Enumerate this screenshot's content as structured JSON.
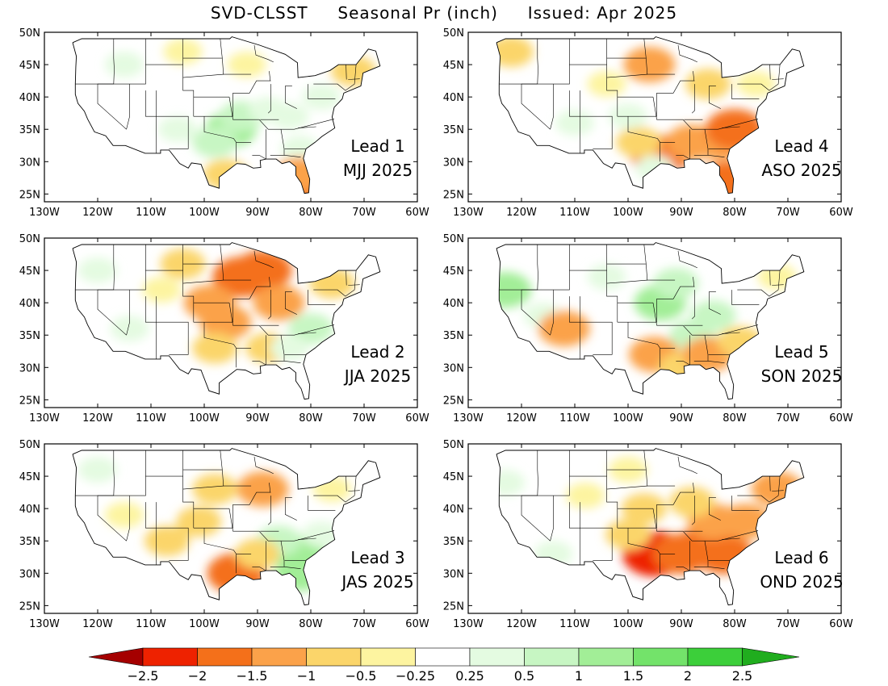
{
  "title": "SVD-CLSST     Seasonal Pr (inch)     Issued: Apr 2025",
  "lon_ticks": [
    "130W",
    "120W",
    "110W",
    "100W",
    "90W",
    "80W",
    "70W",
    "60W"
  ],
  "lat_ticks": [
    "50N",
    "45N",
    "40N",
    "35N",
    "30N",
    "25N"
  ],
  "panels": [
    {
      "lead": "Lead 1",
      "season": "MJJ 2025",
      "anomalies": [
        {
          "lon": -95,
          "lat": 35,
          "level": 3
        },
        {
          "lon": -93,
          "lat": 37,
          "level": 2
        },
        {
          "lon": -98,
          "lat": 33,
          "level": 2
        },
        {
          "lon": -88,
          "lat": 38,
          "level": 1
        },
        {
          "lon": -84,
          "lat": 37,
          "level": 1
        },
        {
          "lon": -78,
          "lat": 40,
          "level": 1
        },
        {
          "lon": -115,
          "lat": 45,
          "level": 1
        },
        {
          "lon": -105,
          "lat": 35,
          "level": 1
        },
        {
          "lon": -82,
          "lat": 32,
          "level": 1
        },
        {
          "lon": -81,
          "lat": 26,
          "level": -4
        },
        {
          "lon": -82,
          "lat": 28,
          "level": -3
        },
        {
          "lon": -96,
          "lat": 28,
          "level": -2
        },
        {
          "lon": -72,
          "lat": 44,
          "level": -2
        },
        {
          "lon": -92,
          "lat": 45,
          "level": -1
        },
        {
          "lon": -104,
          "lat": 47,
          "level": -1
        }
      ]
    },
    {
      "lead": "Lead 4",
      "season": "ASO 2025",
      "anomalies": [
        {
          "lon": -96,
          "lat": 45,
          "level": -3
        },
        {
          "lon": -94,
          "lat": 31,
          "level": -4
        },
        {
          "lon": -88,
          "lat": 33,
          "level": -3
        },
        {
          "lon": -83,
          "lat": 33,
          "level": -3
        },
        {
          "lon": -80,
          "lat": 35,
          "level": -4
        },
        {
          "lon": -81,
          "lat": 27,
          "level": -4
        },
        {
          "lon": -98,
          "lat": 33,
          "level": -2
        },
        {
          "lon": -85,
          "lat": 42,
          "level": -2
        },
        {
          "lon": -104,
          "lat": 42,
          "level": -1
        },
        {
          "lon": -122,
          "lat": 47,
          "level": -2
        },
        {
          "lon": -76,
          "lat": 42,
          "level": -1
        },
        {
          "lon": -110,
          "lat": 36,
          "level": 1
        },
        {
          "lon": -100,
          "lat": 37,
          "level": 1
        },
        {
          "lon": -95,
          "lat": 29,
          "level": 1
        }
      ]
    },
    {
      "lead": "Lead 2",
      "season": "JJA 2025",
      "anomalies": [
        {
          "lon": -93,
          "lat": 44,
          "level": -4
        },
        {
          "lon": -89,
          "lat": 45,
          "level": -4
        },
        {
          "lon": -86,
          "lat": 40,
          "level": -3
        },
        {
          "lon": -99,
          "lat": 40,
          "level": -3
        },
        {
          "lon": -96,
          "lat": 37,
          "level": -3
        },
        {
          "lon": -98,
          "lat": 33,
          "level": -2
        },
        {
          "lon": -76,
          "lat": 43,
          "level": -2
        },
        {
          "lon": -104,
          "lat": 46,
          "level": -2
        },
        {
          "lon": -108,
          "lat": 42,
          "level": -1
        },
        {
          "lon": -88,
          "lat": 33,
          "level": -2
        },
        {
          "lon": -80,
          "lat": 36,
          "level": 2
        },
        {
          "lon": -84,
          "lat": 33,
          "level": 1
        },
        {
          "lon": -120,
          "lat": 45,
          "level": 1
        },
        {
          "lon": -114,
          "lat": 36,
          "level": 1
        }
      ]
    },
    {
      "lead": "Lead 5",
      "season": "SON 2025",
      "anomalies": [
        {
          "lon": -123,
          "lat": 42,
          "level": 3
        },
        {
          "lon": -94,
          "lat": 40,
          "level": 3
        },
        {
          "lon": -91,
          "lat": 43,
          "level": 2
        },
        {
          "lon": -88,
          "lat": 35,
          "level": 2
        },
        {
          "lon": -84,
          "lat": 38,
          "level": 2
        },
        {
          "lon": -80,
          "lat": 34,
          "level": 1
        },
        {
          "lon": -104,
          "lat": 44,
          "level": 1
        },
        {
          "lon": -116,
          "lat": 38,
          "level": 1
        },
        {
          "lon": -112,
          "lat": 36,
          "level": -3
        },
        {
          "lon": -95,
          "lat": 32,
          "level": -3
        },
        {
          "lon": -90,
          "lat": 30,
          "level": -2
        },
        {
          "lon": -85,
          "lat": 32,
          "level": -3
        },
        {
          "lon": -79,
          "lat": 34,
          "level": -2
        },
        {
          "lon": -72,
          "lat": 44,
          "level": -1
        }
      ]
    },
    {
      "lead": "Lead 3",
      "season": "JAS 2025",
      "anomalies": [
        {
          "lon": -82,
          "lat": 30,
          "level": 3
        },
        {
          "lon": -82,
          "lat": 33,
          "level": 3
        },
        {
          "lon": -86,
          "lat": 35,
          "level": 2
        },
        {
          "lon": -78,
          "lat": 36,
          "level": 1
        },
        {
          "lon": -94,
          "lat": 30,
          "level": -4
        },
        {
          "lon": -89,
          "lat": 43,
          "level": -3
        },
        {
          "lon": -98,
          "lat": 43,
          "level": -2
        },
        {
          "lon": -101,
          "lat": 38,
          "level": -2
        },
        {
          "lon": -107,
          "lat": 35,
          "level": -2
        },
        {
          "lon": -90,
          "lat": 33,
          "level": -2
        },
        {
          "lon": -76,
          "lat": 43,
          "level": -1
        },
        {
          "lon": -115,
          "lat": 39,
          "level": -1
        },
        {
          "lon": -120,
          "lat": 46,
          "level": 1
        }
      ]
    },
    {
      "lead": "Lead 6",
      "season": "OND 2025",
      "anomalies": [
        {
          "lon": -95,
          "lat": 33,
          "level": -5
        },
        {
          "lon": -90,
          "lat": 33,
          "level": -4
        },
        {
          "lon": -86,
          "lat": 34,
          "level": -4
        },
        {
          "lon": -82,
          "lat": 33,
          "level": -4
        },
        {
          "lon": -84,
          "lat": 38,
          "level": -3
        },
        {
          "lon": -78,
          "lat": 38,
          "level": -3
        },
        {
          "lon": -72,
          "lat": 43,
          "level": -3
        },
        {
          "lon": -88,
          "lat": 41,
          "level": -2
        },
        {
          "lon": -97,
          "lat": 40,
          "level": -2
        },
        {
          "lon": -100,
          "lat": 36,
          "level": -2
        },
        {
          "lon": -100,
          "lat": 46,
          "level": -1
        },
        {
          "lon": -108,
          "lat": 42,
          "level": -1
        },
        {
          "lon": -123,
          "lat": 44,
          "level": 1
        },
        {
          "lon": -114,
          "lat": 33,
          "level": 1
        }
      ]
    }
  ],
  "colorbar": {
    "colors": [
      "#a50000",
      "#ee2200",
      "#f4701a",
      "#fba24a",
      "#fbd56a",
      "#fdf4a0",
      "#ffffff",
      "#e4fbe1",
      "#c7f6c3",
      "#a2ee97",
      "#73e36a",
      "#3ccf3a",
      "#20ad1e"
    ],
    "labels": [
      "−2.5",
      "−2",
      "−1.5",
      "−1",
      "−0.5",
      "−0.25",
      "0.25",
      "0.5",
      "1",
      "1.5",
      "2",
      "2.5"
    ]
  }
}
